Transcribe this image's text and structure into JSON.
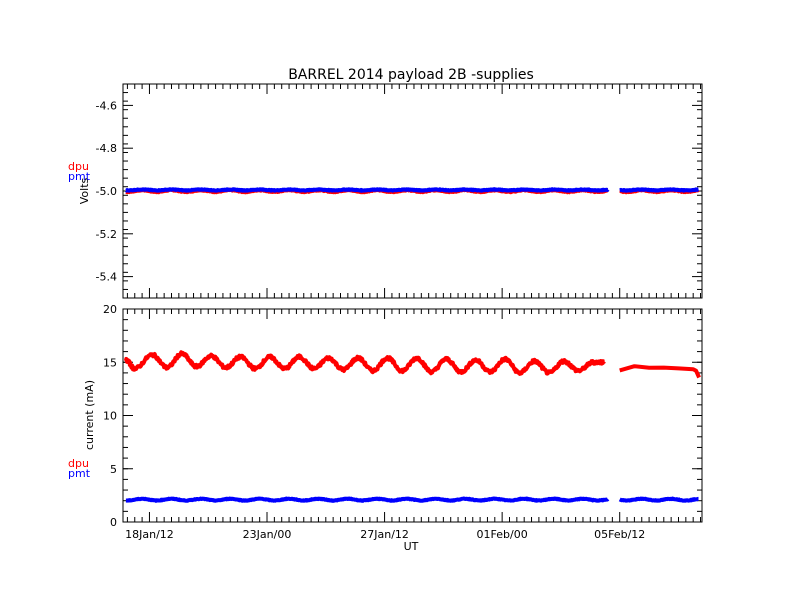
{
  "colors": {
    "dpu": "#ff0000",
    "pmt": "#0000ff",
    "axis": "#000000",
    "background": "#ffffff"
  },
  "chart_data": {
    "type": "line",
    "title": "BARREL 2014 payload 2B -supplies",
    "xlabel": "UT",
    "x_unit": "day",
    "x_ticks": [
      {
        "x": 17.5,
        "label": "18Jan/12"
      },
      {
        "x": 21.5,
        "label": "23Jan/00"
      },
      {
        "x": 25.5,
        "label": "27Jan/12"
      },
      {
        "x": 29.5,
        "label": "01Feb/00"
      },
      {
        "x": 33.5,
        "label": "05Feb/12"
      }
    ],
    "xlim": [
      16.6,
      36.3
    ],
    "gap": [
      33.1,
      33.5
    ],
    "panels": [
      {
        "name": "voltage",
        "ylabel": "Volts",
        "ylim": [
          -5.5,
          -4.5
        ],
        "yticks": [
          "-4.6",
          "-4.8",
          "-5.0",
          "-5.2",
          "-5.4"
        ],
        "ytick_values": [
          -4.6,
          -4.8,
          -5.0,
          -5.2,
          -5.4
        ],
        "series": [
          {
            "name": "dpu",
            "level": -5.0,
            "amplitude": 0.004,
            "period": 1.0,
            "noise": 0.004
          },
          {
            "name": "pmt",
            "level": -4.995,
            "amplitude": 0.002,
            "period": 1.0,
            "noise": 0.003
          }
        ]
      },
      {
        "name": "current",
        "ylabel": "current (mA)",
        "ylim": [
          0,
          20
        ],
        "yticks": [
          "0",
          "5",
          "10",
          "15",
          "20"
        ],
        "ytick_values": [
          0,
          5,
          10,
          15,
          20
        ],
        "series": [
          {
            "name": "dpu",
            "level": 14.9,
            "amplitude": 0.6,
            "period": 1.0,
            "noise": 0.15,
            "x": [
              16.7,
              17.0,
              17.6,
              18.1,
              18.6,
              19.1,
              19.6,
              20.1,
              20.6,
              21.1,
              21.6,
              22.1,
              22.6,
              23.1,
              23.6,
              24.1,
              24.6,
              25.1,
              25.6,
              26.1,
              26.6,
              27.1,
              27.6,
              28.1,
              28.6,
              29.1,
              29.6,
              30.1,
              30.6,
              31.1,
              31.6,
              32.1,
              32.6,
              33.0
            ],
            "y": [
              15.2,
              14.4,
              15.7,
              14.5,
              15.8,
              14.6,
              15.6,
              14.5,
              15.5,
              14.4,
              15.5,
              14.4,
              15.5,
              14.4,
              15.4,
              14.3,
              15.4,
              14.2,
              15.4,
              14.2,
              15.4,
              14.1,
              15.3,
              14.1,
              15.2,
              14.1,
              15.3,
              14.0,
              15.1,
              14.0,
              15.1,
              14.2,
              15.0,
              15.0
            ]
          },
          {
            "name": "pmt",
            "level": 2.1,
            "amplitude": 0.08,
            "period": 1.0,
            "noise": 0.06
          }
        ],
        "tail": {
          "x": [
            33.5,
            34.0,
            34.5,
            35.0,
            35.5,
            36.0,
            36.1,
            36.2
          ],
          "y": [
            14.3,
            14.7,
            14.5,
            14.5,
            14.4,
            14.4,
            14.2,
            13.5
          ]
        }
      }
    ],
    "legend": [
      "dpu",
      "pmt"
    ]
  }
}
